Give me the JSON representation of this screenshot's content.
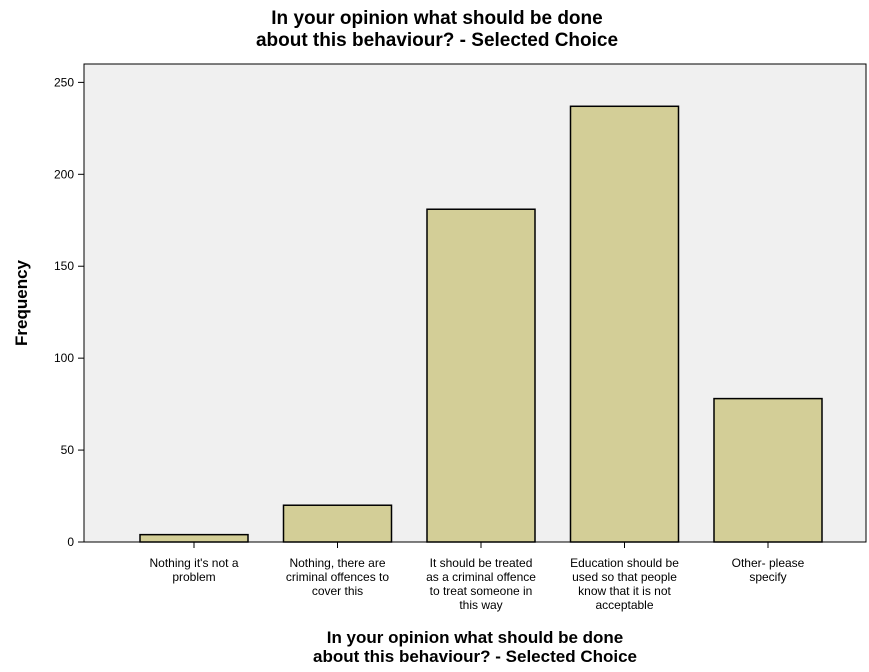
{
  "chart_data": {
    "type": "bar",
    "title": [
      "In your opinion what should be done",
      "about this behaviour? - Selected Choice"
    ],
    "xlabel": [
      "In your opinion what should be done",
      "about this behaviour? - Selected Choice"
    ],
    "ylabel": "Frequency",
    "ylim": [
      0,
      260
    ],
    "yticks": [
      0,
      50,
      100,
      150,
      200,
      250
    ],
    "categories": [
      [
        "Nothing it's not a",
        "problem"
      ],
      [
        "Nothing, there are",
        "criminal offences to",
        "cover this"
      ],
      [
        "It should be treated",
        "as a criminal offence",
        "to treat someone in",
        "this way"
      ],
      [
        "Education should be",
        "used so that people",
        "know that it is not",
        "acceptable"
      ],
      [
        "Other- please",
        "specify"
      ]
    ],
    "values": [
      4,
      20,
      181,
      237,
      78
    ],
    "grid": false,
    "legend": "none",
    "colors": {
      "bar_fill": "#d3ce97",
      "bar_stroke": "#000000",
      "plot_background": "#f0f0f0",
      "plot_border": "#000000"
    }
  }
}
